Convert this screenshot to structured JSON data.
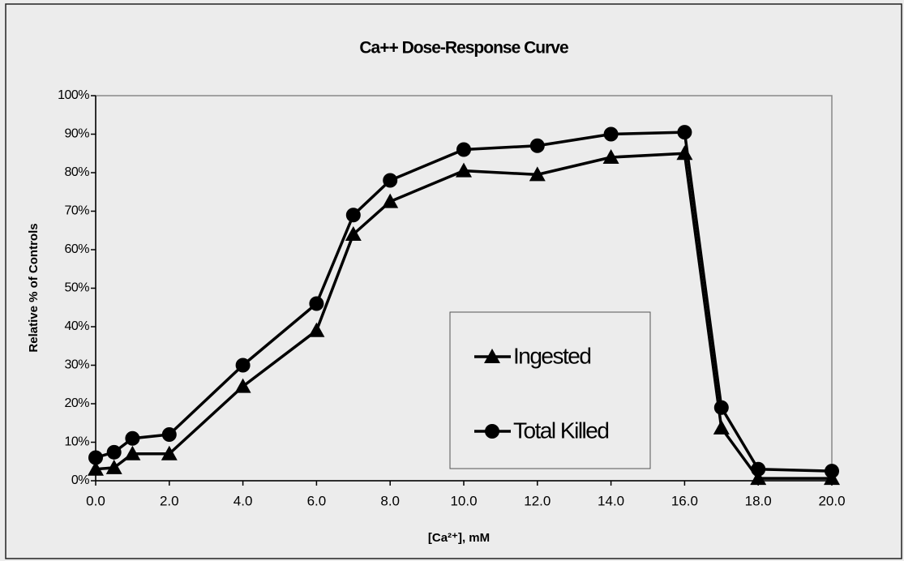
{
  "chart_data": {
    "type": "line",
    "title": "Ca++ Dose-Response Curve",
    "x_label": "[Ca²⁺], mM",
    "y_label": "Relative % of Controls",
    "x": [
      0,
      0.5,
      1,
      2,
      4,
      6,
      7,
      8,
      10,
      12,
      14,
      16,
      17,
      18,
      20
    ],
    "series": [
      {
        "name": "Ingested",
        "color": "#000000",
        "marker": "triangle",
        "values": [
          3,
          3.4,
          7,
          7,
          24.5,
          39,
          64,
          72.5,
          80.5,
          79.5,
          84,
          85,
          13.7,
          0.6,
          0.6
        ]
      },
      {
        "name": "Total Killed",
        "color": "#000000",
        "marker": "circle",
        "values": [
          6,
          7.4,
          11,
          12,
          30,
          46,
          69,
          78,
          86,
          87,
          90,
          90.5,
          19,
          3,
          2.5
        ]
      }
    ],
    "xlim": [
      0,
      20
    ],
    "xticks": [
      {
        "value": 0,
        "label": "0.0"
      },
      {
        "value": 2,
        "label": "2.0"
      },
      {
        "value": 4,
        "label": "4.0"
      },
      {
        "value": 6,
        "label": "6.0"
      },
      {
        "value": 8,
        "label": "8.0"
      },
      {
        "value": 10,
        "label": "10.0"
      },
      {
        "value": 12,
        "label": "12.0"
      },
      {
        "value": 14,
        "label": "14.0"
      },
      {
        "value": 16,
        "label": "16.0"
      },
      {
        "value": 18,
        "label": "18.0"
      },
      {
        "value": 20,
        "label": "20.0"
      }
    ],
    "ylim": [
      0,
      100
    ],
    "yticks": [
      {
        "value": 0,
        "label": "0%"
      },
      {
        "value": 10,
        "label": "10%"
      },
      {
        "value": 20,
        "label": "20%"
      },
      {
        "value": 30,
        "label": "30%"
      },
      {
        "value": 40,
        "label": "40%"
      },
      {
        "value": 50,
        "label": "50%"
      },
      {
        "value": 60,
        "label": "60%"
      },
      {
        "value": 70,
        "label": "70%"
      },
      {
        "value": 80,
        "label": "80%"
      },
      {
        "value": 90,
        "label": "90%"
      },
      {
        "value": 100,
        "label": "100%"
      }
    ],
    "grid": false,
    "legend": "center"
  }
}
